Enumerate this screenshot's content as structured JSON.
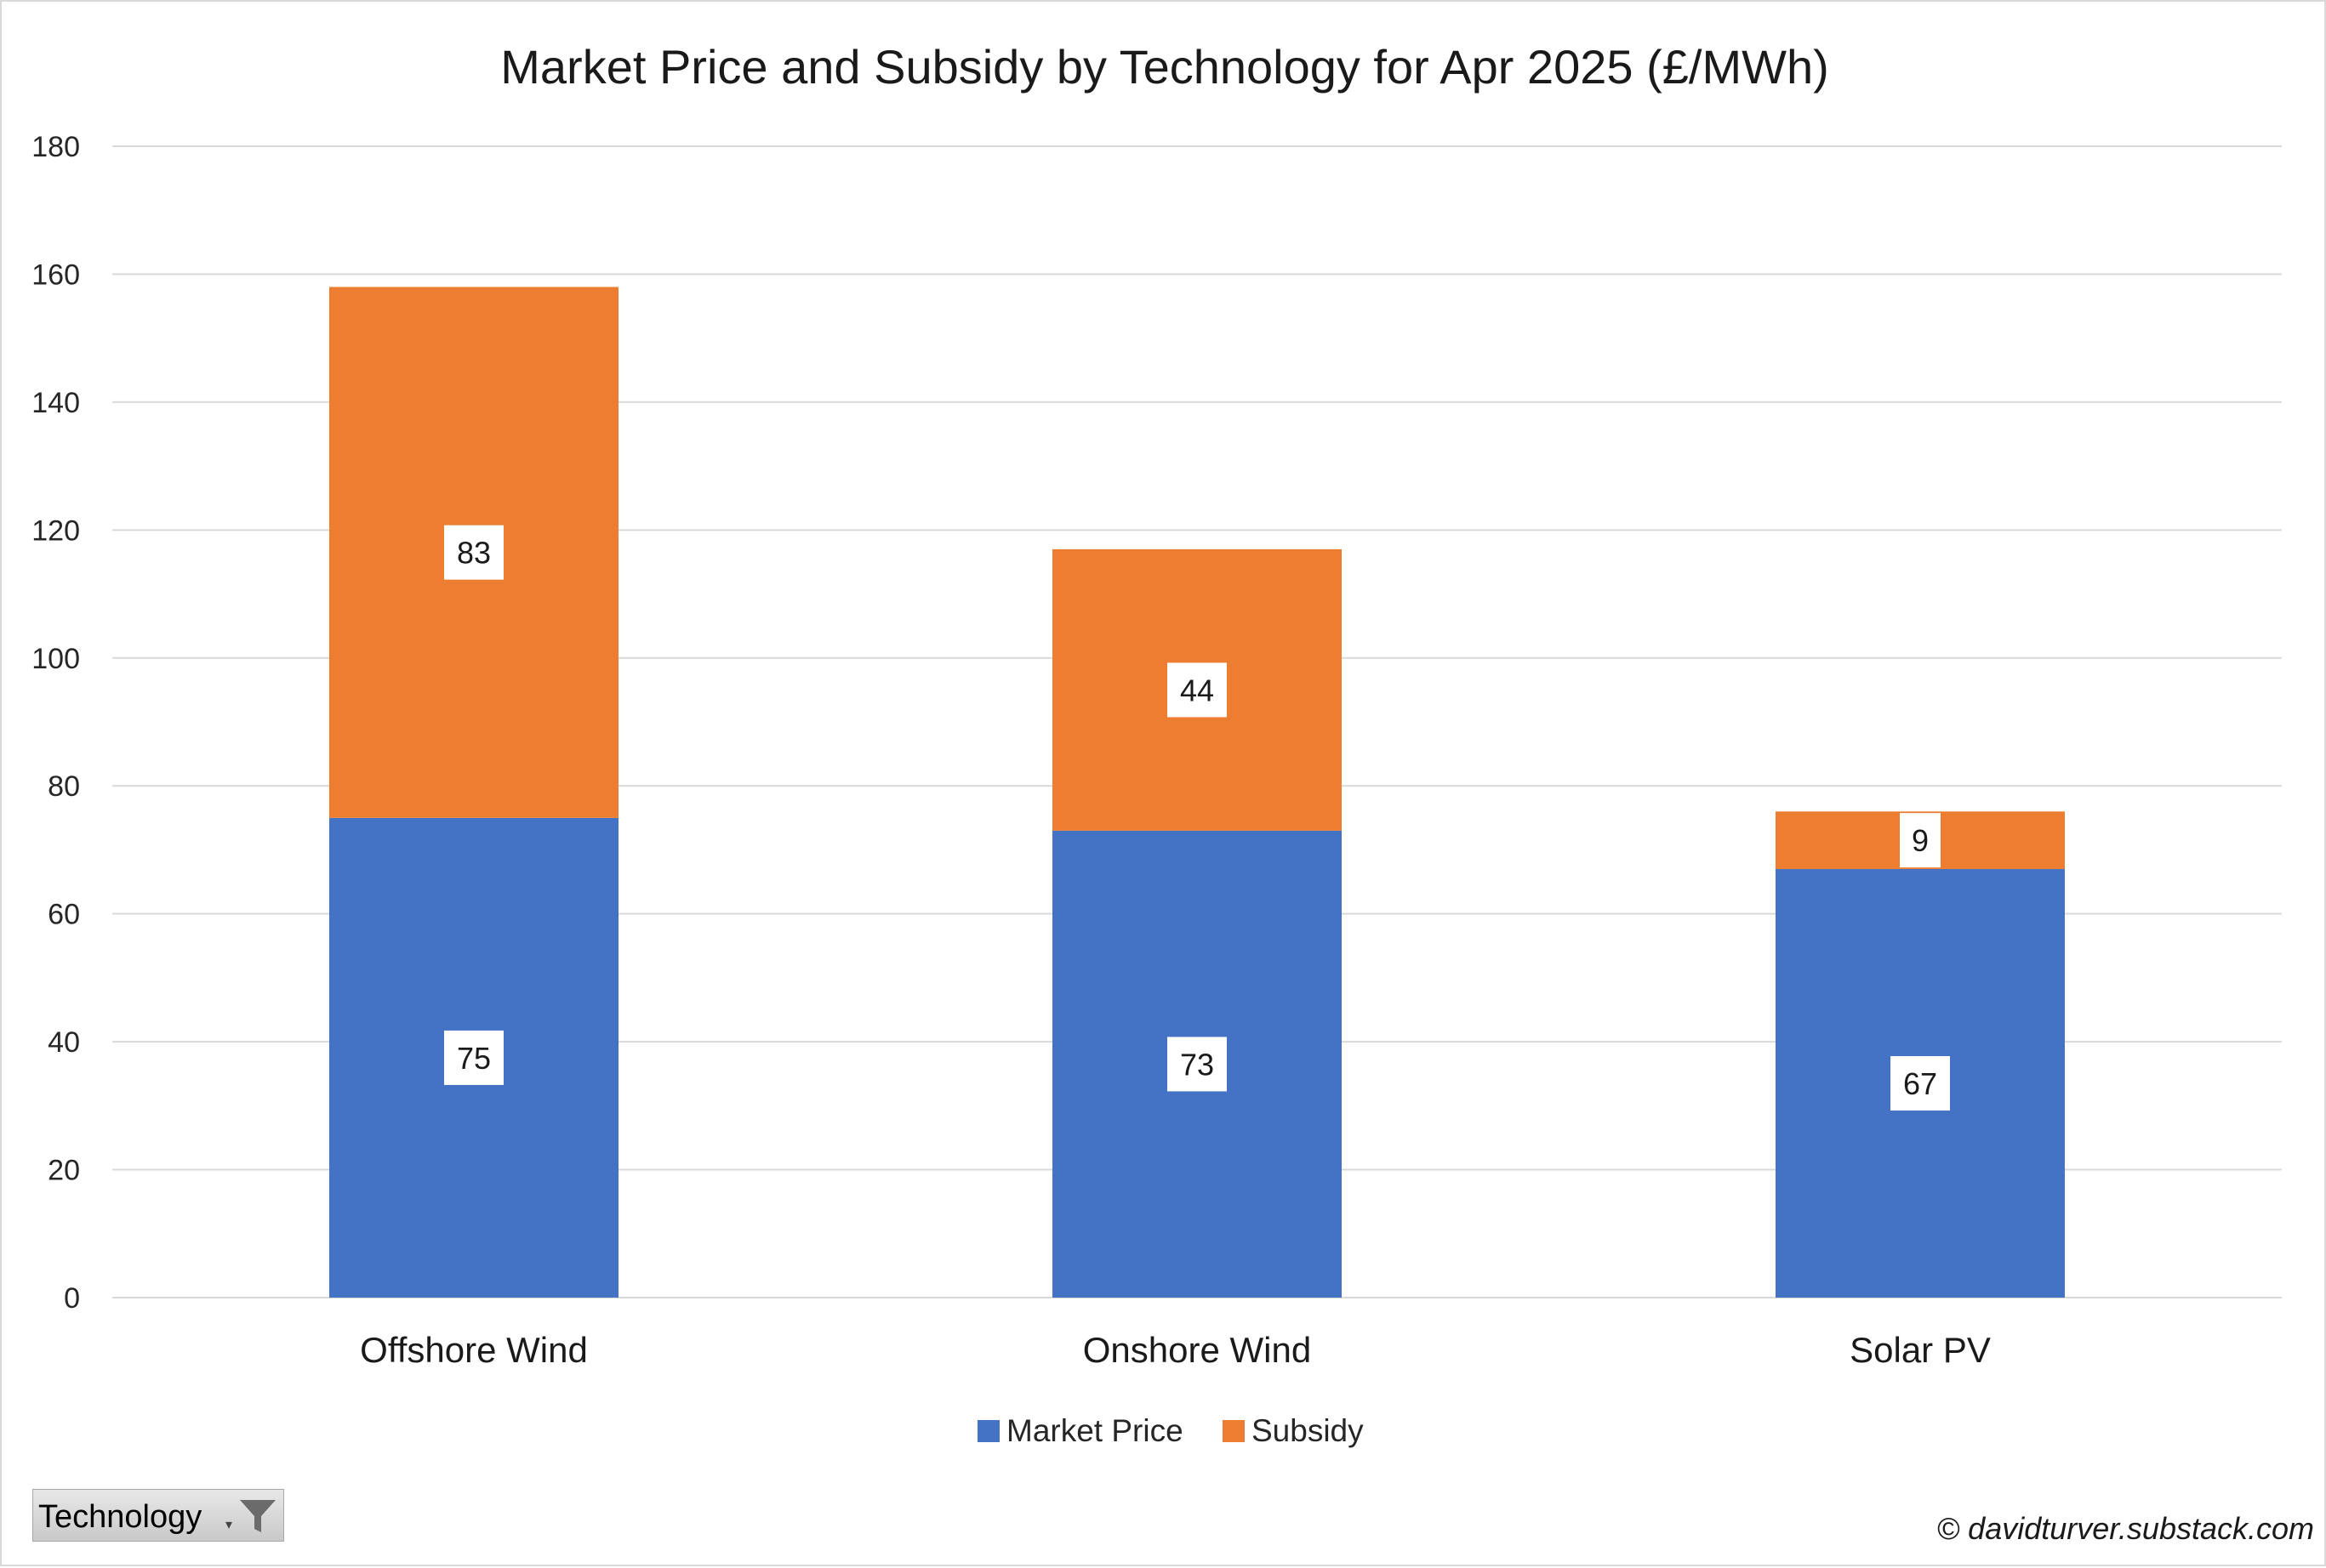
{
  "chart_data": {
    "type": "bar",
    "stacked": true,
    "title": "Market Price and Subsidy by Technology for Apr 2025 (£/MWh)",
    "categories": [
      "Offshore Wind",
      "Onshore Wind",
      "Solar PV"
    ],
    "series": [
      {
        "name": "Market Price",
        "color": "#4472C4",
        "values": [
          75,
          73,
          67
        ]
      },
      {
        "name": "Subsidy",
        "color": "#ED7D31",
        "values": [
          83,
          44,
          9
        ]
      }
    ],
    "ylim": [
      0,
      180
    ],
    "yticks": [
      "0",
      "20",
      "40",
      "60",
      "80",
      "100",
      "120",
      "140",
      "160",
      "180"
    ],
    "grid": true,
    "legend_position": "bottom",
    "xlabel": "",
    "ylabel": ""
  },
  "filter": {
    "label": "Technology",
    "icon": "funnel-icon"
  },
  "credit": "© davidturver.substack.com"
}
